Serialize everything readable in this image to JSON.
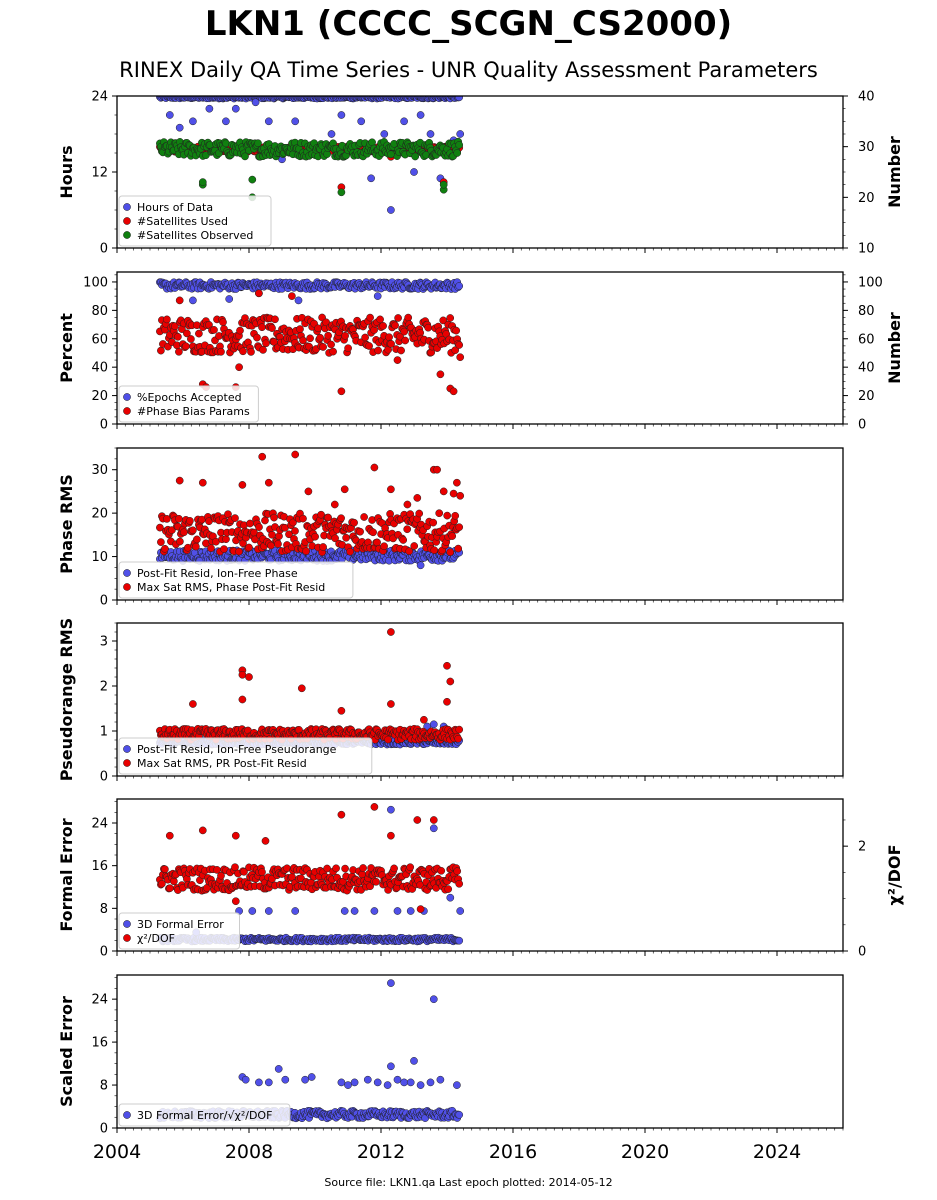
{
  "title": "LKN1 (CCCC_SCGN_CS2000)",
  "subtitle": "RINEX Daily QA Time Series - UNR Quality Assessment Parameters",
  "footer": "Source file: LKN1.qa Last epoch plotted: 2014-05-12",
  "colors": {
    "blue": "#5050e8",
    "red": "#e80000",
    "green": "#108010",
    "edge": "#202020"
  },
  "chart_data": [
    {
      "type": "scatter",
      "ylabel": "Hours",
      "ylabel_right": "Number",
      "xlim": [
        2004,
        2026
      ],
      "ylim": [
        0,
        24
      ],
      "ylim_right": [
        10,
        40
      ],
      "yticks": [
        0,
        12,
        24
      ],
      "yticks_right": [
        10,
        20,
        30,
        40
      ],
      "legend_position": "lower-left",
      "series": [
        {
          "name": "Hours of Data",
          "color": "#5050e8",
          "axis": "left",
          "band": [
            23.6,
            24
          ],
          "min": 6,
          "outliers": [
            [
              2005.6,
              21
            ],
            [
              2005.9,
              19
            ],
            [
              2006.3,
              20
            ],
            [
              2006.8,
              22
            ],
            [
              2007.3,
              20
            ],
            [
              2007.6,
              22
            ],
            [
              2008.2,
              23
            ],
            [
              2008.6,
              20
            ],
            [
              2009.0,
              14
            ],
            [
              2009.4,
              20
            ],
            [
              2010.5,
              18
            ],
            [
              2010.8,
              21
            ],
            [
              2011.2,
              16
            ],
            [
              2011.4,
              20
            ],
            [
              2011.7,
              11
            ],
            [
              2012.1,
              18
            ],
            [
              2012.3,
              6
            ],
            [
              2012.7,
              20
            ],
            [
              2013.0,
              12
            ],
            [
              2013.2,
              21
            ],
            [
              2013.5,
              18
            ],
            [
              2013.8,
              11
            ],
            [
              2013.9,
              15
            ],
            [
              2014.2,
              17
            ],
            [
              2014.4,
              18
            ]
          ]
        },
        {
          "name": "#Satellites Used",
          "color": "#e80000",
          "axis": "right",
          "band": [
            29,
            30
          ],
          "outliers": [
            [
              2010.8,
              22
            ],
            [
              2012.3,
              28
            ],
            [
              2013.9,
              23
            ]
          ]
        },
        {
          "name": "#Satellites Observed",
          "color": "#108010",
          "axis": "right",
          "band": [
            28,
            31
          ],
          "outliers": [
            [
              2006.6,
              22.5
            ],
            [
              2006.6,
              23
            ],
            [
              2008.1,
              23.5
            ],
            [
              2008.1,
              20
            ],
            [
              2010.8,
              21
            ],
            [
              2012.3,
              28.5
            ],
            [
              2013.9,
              21.5
            ],
            [
              2013.9,
              22.5
            ]
          ]
        }
      ]
    },
    {
      "type": "scatter",
      "ylabel": "Percent",
      "ylabel_right": "Number",
      "xlim": [
        2004,
        2026
      ],
      "ylim": [
        0,
        107
      ],
      "ylim_right": [
        0,
        107
      ],
      "yticks": [
        0,
        20,
        40,
        60,
        80,
        100
      ],
      "yticks_right": [
        0,
        20,
        40,
        60,
        80,
        100
      ],
      "legend_position": "lower-left",
      "series": [
        {
          "name": "%Epochs Accepted",
          "color": "#5050e8",
          "axis": "left",
          "band": [
            95,
            100
          ],
          "outliers": [
            [
              2006.3,
              87
            ],
            [
              2007.4,
              88
            ],
            [
              2008.3,
              92
            ],
            [
              2009.5,
              87
            ],
            [
              2011.9,
              90
            ]
          ]
        },
        {
          "name": "#Phase Bias Params",
          "color": "#e80000",
          "axis": "right",
          "band": [
            50,
            75
          ],
          "outliers": [
            [
              2005.9,
              87
            ],
            [
              2006.6,
              28
            ],
            [
              2006.7,
              26
            ],
            [
              2007.6,
              26
            ],
            [
              2007.7,
              40
            ],
            [
              2008.3,
              92
            ],
            [
              2009.3,
              90
            ],
            [
              2010.8,
              23
            ],
            [
              2012.5,
              45
            ],
            [
              2013.8,
              35
            ],
            [
              2014.1,
              25
            ],
            [
              2014.2,
              23
            ],
            [
              2014.4,
              47
            ]
          ]
        }
      ]
    },
    {
      "type": "scatter",
      "ylabel": "Phase RMS",
      "xlim": [
        2004,
        2026
      ],
      "ylim": [
        0,
        35
      ],
      "yticks": [
        0,
        10,
        20,
        30
      ],
      "legend_position": "lower-left",
      "series": [
        {
          "name": "Post-Fit Resid, Ion-Free Phase",
          "color": "#5050e8",
          "band": [
            9,
            11.5
          ],
          "outliers": [
            [
              2013.2,
              8
            ],
            [
              2006.5,
              9
            ]
          ]
        },
        {
          "name": "Max Sat RMS, Phase Post-Fit Resid",
          "color": "#e80000",
          "band": [
            11,
            20
          ],
          "outliers": [
            [
              2005.9,
              27.5
            ],
            [
              2006.6,
              27
            ],
            [
              2007.8,
              26.5
            ],
            [
              2008.4,
              33
            ],
            [
              2008.6,
              27
            ],
            [
              2009.4,
              33.5
            ],
            [
              2009.8,
              25
            ],
            [
              2010.6,
              22
            ],
            [
              2010.9,
              25.5
            ],
            [
              2011.8,
              30.5
            ],
            [
              2012.3,
              25.5
            ],
            [
              2012.8,
              22
            ],
            [
              2013.1,
              23.5
            ],
            [
              2013.6,
              30
            ],
            [
              2013.7,
              30
            ],
            [
              2013.9,
              25
            ],
            [
              2014.2,
              24.5
            ],
            [
              2014.4,
              24
            ],
            [
              2014.3,
              27
            ]
          ]
        }
      ]
    },
    {
      "type": "scatter",
      "ylabel": "Pseudorange RMS",
      "xlim": [
        2004,
        2026
      ],
      "ylim": [
        0,
        3.4
      ],
      "yticks": [
        0,
        1,
        2,
        3
      ],
      "legend_position": "lower-left",
      "series": [
        {
          "name": "Post-Fit Resid, Ion-Free Pseudorange",
          "color": "#5050e8",
          "band": [
            0.7,
            0.8
          ],
          "outliers": [
            [
              2013.4,
              1.1
            ],
            [
              2013.6,
              1.15
            ],
            [
              2013.9,
              1.1
            ]
          ]
        },
        {
          "name": "Max Sat RMS, PR Post-Fit Resid",
          "color": "#e80000",
          "band": [
            0.8,
            1.05
          ],
          "outliers": [
            [
              2006.3,
              1.6
            ],
            [
              2007.8,
              2.35
            ],
            [
              2007.8,
              2.25
            ],
            [
              2008.0,
              2.2
            ],
            [
              2007.8,
              1.7
            ],
            [
              2009.6,
              1.95
            ],
            [
              2010.8,
              1.45
            ],
            [
              2012.3,
              3.2
            ],
            [
              2012.3,
              1.6
            ],
            [
              2014.0,
              2.45
            ],
            [
              2014.1,
              2.1
            ],
            [
              2014.0,
              1.65
            ],
            [
              2013.3,
              1.25
            ]
          ]
        }
      ]
    },
    {
      "type": "scatter",
      "ylabel": "Formal Error",
      "ylabel_right": "χ²/DOF",
      "xlim": [
        2004,
        2026
      ],
      "ylim": [
        0,
        28.5
      ],
      "ylim_right": [
        0,
        2.9
      ],
      "yticks": [
        0,
        8,
        16,
        24
      ],
      "yticks_right": [
        0,
        2
      ],
      "legend_position": "lower-left",
      "series": [
        {
          "name": "3D Formal Error",
          "color": "#5050e8",
          "axis": "left",
          "band": [
            1.8,
            2.5
          ],
          "outliers": [
            [
              2006.4,
              3.5
            ],
            [
              2007.7,
              7.5
            ],
            [
              2008.1,
              7.5
            ],
            [
              2008.6,
              7.5
            ],
            [
              2009.4,
              7.5
            ],
            [
              2010.9,
              7.5
            ],
            [
              2011.2,
              7.5
            ],
            [
              2011.8,
              7.5
            ],
            [
              2012.3,
              26.5
            ],
            [
              2012.5,
              7.5
            ],
            [
              2012.9,
              7.5
            ],
            [
              2013.3,
              7.5
            ],
            [
              2013.6,
              23
            ],
            [
              2014.4,
              7.5
            ],
            [
              2014.1,
              10
            ]
          ]
        },
        {
          "name": "χ²/DOF",
          "color": "#e80000",
          "axis": "right",
          "band": [
            1.15,
            1.6
          ],
          "outliers": [
            [
              2005.6,
              2.2
            ],
            [
              2006.6,
              2.3
            ],
            [
              2007.6,
              2.2
            ],
            [
              2008.5,
              2.1
            ],
            [
              2010.8,
              2.6
            ],
            [
              2011.8,
              2.75
            ],
            [
              2012.3,
              2.2
            ],
            [
              2013.1,
              2.5
            ],
            [
              2013.6,
              2.5
            ],
            [
              2013.2,
              0.8
            ],
            [
              2007.6,
              0.95
            ]
          ]
        }
      ]
    },
    {
      "type": "scatter",
      "ylabel": "Scaled Error",
      "xlabel_ticks": [
        "2004",
        "2008",
        "2012",
        "2016",
        "2020",
        "2024"
      ],
      "xlim": [
        2004,
        2026
      ],
      "ylim": [
        0,
        28.5
      ],
      "yticks": [
        0,
        8,
        16,
        24
      ],
      "legend_position": "lower-left",
      "series": [
        {
          "name": "3D Formal Error/√χ²/DOF",
          "color": "#5050e8",
          "band": [
            1.8,
            3.2
          ],
          "outliers": [
            [
              2007.8,
              9.5
            ],
            [
              2007.9,
              9
            ],
            [
              2008.3,
              8.5
            ],
            [
              2008.6,
              8.5
            ],
            [
              2008.9,
              11
            ],
            [
              2009.1,
              9
            ],
            [
              2009.7,
              9
            ],
            [
              2009.9,
              9.5
            ],
            [
              2010.8,
              8.5
            ],
            [
              2011.0,
              8
            ],
            [
              2011.2,
              8.5
            ],
            [
              2011.6,
              9
            ],
            [
              2011.9,
              8.5
            ],
            [
              2012.2,
              8
            ],
            [
              2012.3,
              11.5
            ],
            [
              2012.3,
              27
            ],
            [
              2012.5,
              9
            ],
            [
              2012.7,
              8.5
            ],
            [
              2012.9,
              8.5
            ],
            [
              2013.0,
              12.5
            ],
            [
              2013.2,
              8
            ],
            [
              2013.5,
              8.5
            ],
            [
              2013.6,
              24
            ],
            [
              2013.8,
              9
            ],
            [
              2014.3,
              8
            ]
          ]
        }
      ]
    }
  ]
}
